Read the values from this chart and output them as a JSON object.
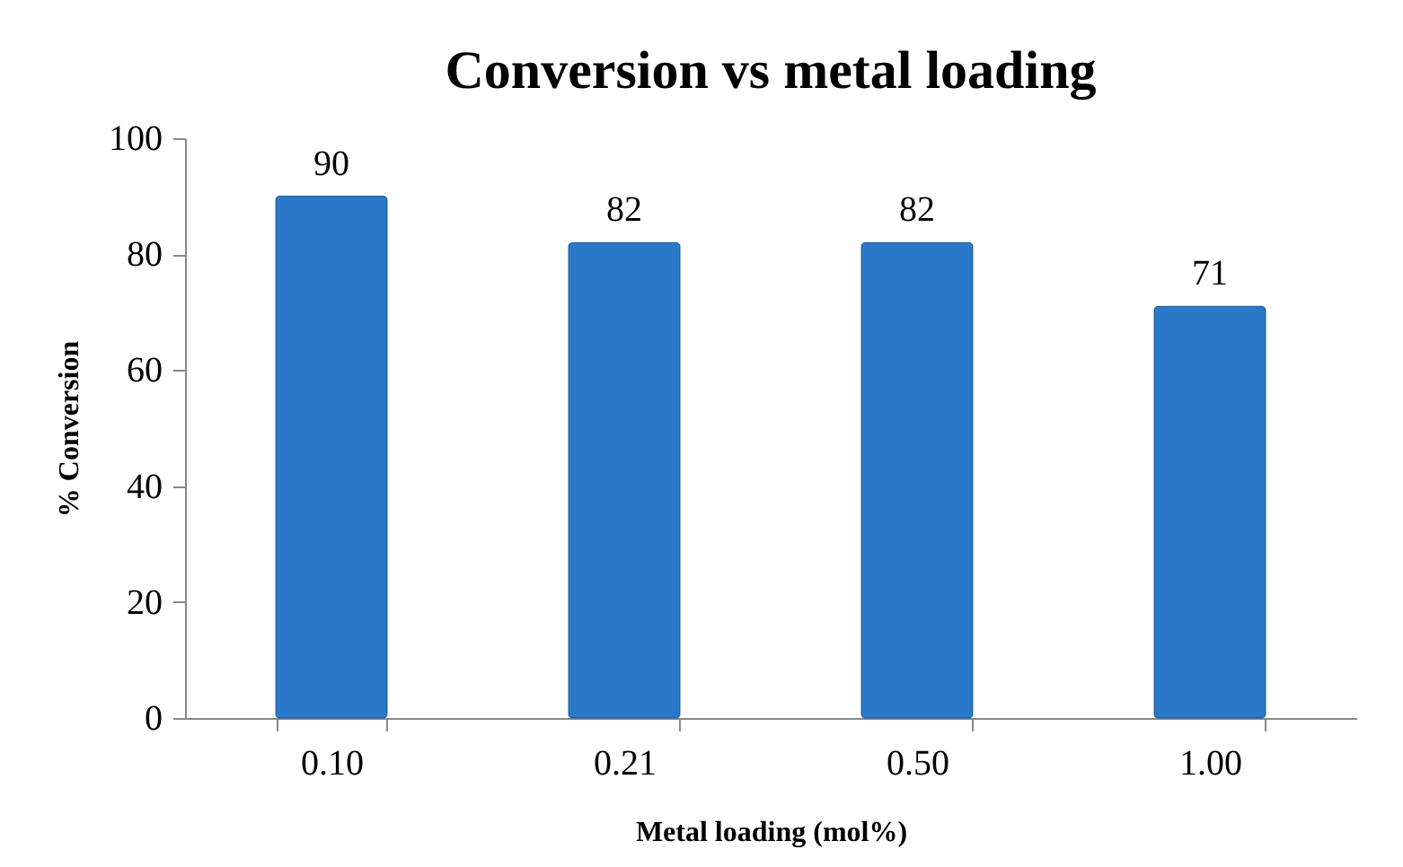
{
  "chart_data": {
    "type": "bar",
    "title": "Conversion vs metal loading",
    "xlabel": "Metal loading (mol%)",
    "ylabel": "% Conversion",
    "categories": [
      "0.10",
      "0.21",
      "0.50",
      "1.00"
    ],
    "values": [
      90,
      82,
      82,
      71
    ],
    "color": "#2a78c8",
    "ylim": [
      0,
      100
    ],
    "yticks": [
      0,
      20,
      40,
      60,
      80,
      100
    ],
    "grid": false,
    "data_labels": true
  }
}
